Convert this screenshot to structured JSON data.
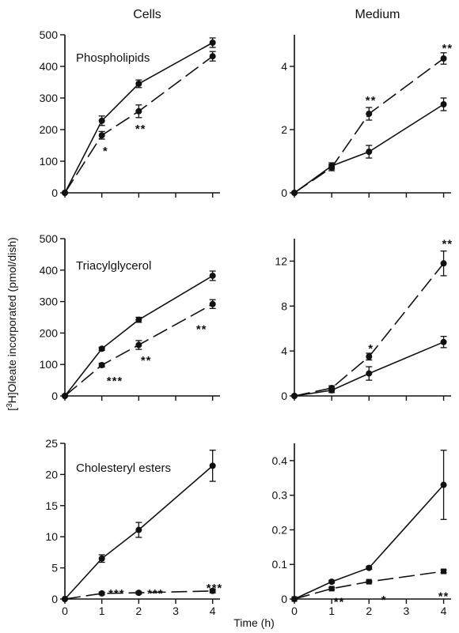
{
  "figure": {
    "col_titles": [
      "Cells",
      "Medium"
    ],
    "ylabel_prefix": "[",
    "ylabel_sup": "3",
    "ylabel_rest": "H]Oleate incorporated (pmol/dish)",
    "xlabel": "Time (h)"
  },
  "chart_data": [
    {
      "type": "line",
      "panel": "cells-phospholipids",
      "label": "Phospholipids",
      "xlabel": "",
      "ylabel": "",
      "x": [
        0,
        1,
        2,
        4
      ],
      "xlim": [
        0,
        4.2
      ],
      "ylim": [
        0,
        500
      ],
      "xticks": [
        0,
        1,
        2,
        3,
        4
      ],
      "yticks": [
        0,
        100,
        200,
        300,
        400,
        500
      ],
      "show_xtick_labels": false,
      "series": [
        {
          "style": "solid",
          "marker": "circle",
          "values": [
            0,
            228,
            345,
            475
          ],
          "errors": [
            0,
            15,
            12,
            15
          ]
        },
        {
          "style": "dashed",
          "marker": "circle",
          "values": [
            0,
            182,
            258,
            432
          ],
          "errors": [
            0,
            12,
            20,
            15
          ]
        }
      ],
      "annotations": [
        {
          "text": "*",
          "x": 1.1,
          "y": 135
        },
        {
          "text": "**",
          "x": 2.05,
          "y": 205
        }
      ]
    },
    {
      "type": "line",
      "panel": "medium-phospholipids",
      "label": "",
      "xlabel": "",
      "ylabel": "",
      "x": [
        0,
        1,
        2,
        4
      ],
      "xlim": [
        0,
        4.2
      ],
      "ylim": [
        0,
        5
      ],
      "xticks": [
        0,
        1,
        2,
        3,
        4
      ],
      "yticks": [
        0,
        2,
        4
      ],
      "show_xtick_labels": false,
      "series": [
        {
          "style": "solid",
          "marker": "circle",
          "values": [
            0,
            0.85,
            1.3,
            2.8
          ],
          "errors": [
            0,
            0.1,
            0.2,
            0.2
          ]
        },
        {
          "style": "dashed",
          "marker": "circle",
          "values": [
            0,
            0.8,
            2.5,
            4.25
          ],
          "errors": [
            0,
            0.1,
            0.2,
            0.18
          ]
        }
      ],
      "annotations": [
        {
          "text": "**",
          "x": 2.05,
          "y": 2.95
        },
        {
          "text": "**",
          "x": 4.1,
          "y": 4.6
        }
      ]
    },
    {
      "type": "line",
      "panel": "cells-triacylglycerol",
      "label": "Triacylglycerol",
      "xlabel": "",
      "ylabel": "",
      "x": [
        0,
        1,
        2,
        4
      ],
      "xlim": [
        0,
        4.2
      ],
      "ylim": [
        0,
        500
      ],
      "xticks": [
        0,
        1,
        2,
        3,
        4
      ],
      "yticks": [
        0,
        100,
        200,
        300,
        400,
        500
      ],
      "show_xtick_labels": false,
      "series": [
        {
          "style": "solid",
          "marker": "circle",
          "values": [
            0,
            150,
            242,
            382
          ],
          "errors": [
            0,
            5,
            8,
            15
          ]
        },
        {
          "style": "dashed",
          "marker": "circle",
          "values": [
            0,
            98,
            162,
            292
          ],
          "errors": [
            0,
            6,
            14,
            14
          ]
        }
      ],
      "annotations": [
        {
          "text": "***",
          "x": 1.35,
          "y": 50
        },
        {
          "text": "**",
          "x": 2.2,
          "y": 115
        },
        {
          "text": "**",
          "x": 3.7,
          "y": 215
        }
      ]
    },
    {
      "type": "line",
      "panel": "medium-triacylglycerol",
      "label": "",
      "xlabel": "",
      "ylabel": "",
      "x": [
        0,
        1,
        2,
        4
      ],
      "xlim": [
        0,
        4.2
      ],
      "ylim": [
        0,
        14
      ],
      "xticks": [
        0,
        1,
        2,
        3,
        4
      ],
      "yticks": [
        0,
        4,
        8,
        12
      ],
      "show_xtick_labels": false,
      "series": [
        {
          "style": "solid",
          "marker": "circle",
          "values": [
            0,
            0.5,
            2.0,
            4.8
          ],
          "errors": [
            0,
            0.2,
            0.6,
            0.5
          ]
        },
        {
          "style": "dashed",
          "marker": "circle",
          "values": [
            0,
            0.7,
            3.5,
            11.8
          ],
          "errors": [
            0,
            0.2,
            0.3,
            1.1
          ]
        }
      ],
      "annotations": [
        {
          "text": "*",
          "x": 2.05,
          "y": 4.3
        },
        {
          "text": "**",
          "x": 4.1,
          "y": 13.6
        }
      ]
    },
    {
      "type": "line",
      "panel": "cells-cholesteryl-esters",
      "label": "Cholesteryl esters",
      "xlabel": "",
      "ylabel": "",
      "x": [
        0,
        1,
        2,
        4
      ],
      "xlim": [
        0,
        4.2
      ],
      "ylim": [
        0,
        25
      ],
      "xticks": [
        0,
        1,
        2,
        3,
        4
      ],
      "yticks": [
        0,
        5,
        10,
        15,
        20,
        25
      ],
      "show_xtick_labels": true,
      "series": [
        {
          "style": "solid",
          "marker": "circle",
          "values": [
            0,
            6.5,
            11.1,
            21.4
          ],
          "errors": [
            0,
            0.6,
            1.2,
            2.5
          ]
        },
        {
          "style": "dashed",
          "marker": "circle",
          "values": [
            0,
            0.9,
            1.0,
            1.3
          ],
          "errors": [
            0,
            0.2,
            0.2,
            0.3
          ]
        }
      ],
      "annotations": [
        {
          "text": "***",
          "x": 1.4,
          "y": 1.0
        },
        {
          "text": "***",
          "x": 2.45,
          "y": 1.0
        },
        {
          "text": "***",
          "x": 4.05,
          "y": 1.9
        }
      ]
    },
    {
      "type": "line",
      "panel": "medium-cholesteryl-esters",
      "label": "",
      "xlabel": "",
      "ylabel": "",
      "x": [
        0,
        1,
        2,
        4
      ],
      "xlim": [
        0,
        4.2
      ],
      "ylim": [
        0,
        0.45
      ],
      "xticks": [
        0,
        1,
        2,
        3,
        4
      ],
      "yticks": [
        0,
        0.1,
        0.2,
        0.3,
        0.4
      ],
      "show_xtick_labels": true,
      "series": [
        {
          "style": "solid",
          "marker": "circle",
          "values": [
            0,
            0.05,
            0.09,
            0.33
          ],
          "errors": [
            0,
            0.004,
            0.004,
            0.1
          ]
        },
        {
          "style": "dashed",
          "marker": "square",
          "values": [
            0,
            0.03,
            0.05,
            0.08
          ],
          "errors": [
            0,
            0.003,
            0.003,
            0.004
          ]
        }
      ],
      "annotations": [
        {
          "text": "**",
          "x": 1.2,
          "y": -0.006
        },
        {
          "text": "*",
          "x": 2.4,
          "y": 0.0
        },
        {
          "text": "**",
          "x": 4.0,
          "y": 0.01
        }
      ]
    }
  ]
}
